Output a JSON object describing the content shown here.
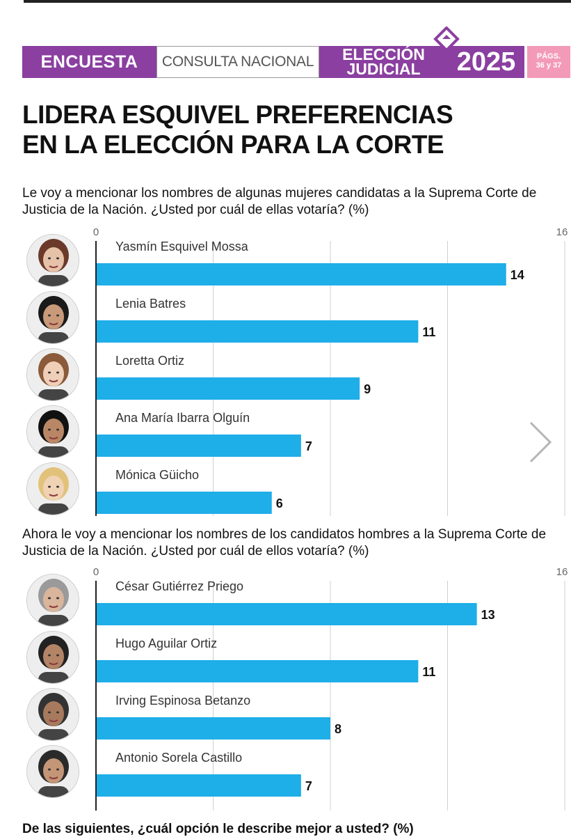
{
  "header": {
    "encuesta": "ENCUESTA",
    "consulta": "CONSULTA NACIONAL",
    "eleccion_line1": "ELECCIÓN",
    "eleccion_line2": "JUDICIAL",
    "year": "2025",
    "pags_line1": "PÁGS.",
    "pags_line2": "36 y 37",
    "colors": {
      "purple": "#8b3fa0",
      "pink": "#f39ab8",
      "bar": "#1eaee8"
    }
  },
  "headline_line1": "LIDERA ESQUIVEL PREFERENCIAS",
  "headline_line2": "EN LA ELECCIÓN PARA LA CORTE",
  "chart_data": [
    {
      "type": "bar",
      "title": "Le voy a mencionar los nombres de algunas mujeres candidatas a la Suprema Corte de Justicia de la Nación. ¿Usted por cuál de ellas votaría? (%)",
      "axis_min_label": "0",
      "axis_max_label": "16",
      "xlim": [
        0,
        16
      ],
      "gridlines": [
        4,
        8,
        12
      ],
      "categories": [
        "Yasmín Esquivel Mossa",
        "Lenia Batres",
        "Loretta Ortiz",
        "Ana María Ibarra Olguín",
        "Mónica Güicho"
      ],
      "values": [
        14,
        11,
        9,
        7,
        6
      ],
      "value_labels": [
        "14",
        "11",
        "9",
        "7",
        "6"
      ]
    },
    {
      "type": "bar",
      "title": "Ahora le voy a mencionar los nombres de los candidatos hombres a la Suprema Corte de Justicia de la Nación. ¿Usted por cuál de ellos votaría? (%)",
      "axis_min_label": "0",
      "axis_max_label": "16",
      "xlim": [
        0,
        16
      ],
      "gridlines": [
        4,
        8,
        12
      ],
      "categories": [
        "César Gutiérrez Priego",
        "Hugo Aguilar Ortiz",
        "Irving Espinosa Betanzo",
        "Antonio Sorela Castillo"
      ],
      "values": [
        13,
        11,
        8,
        7
      ],
      "value_labels": [
        "13",
        "11",
        "8",
        "7"
      ]
    }
  ],
  "next_question": "De las siguientes, ¿cuál opción le describe mejor a usted? (%)",
  "icons": {
    "next": "chevron-right-icon",
    "logo": "diamond-logo-icon",
    "portrait": "candidate-portrait-icon"
  }
}
